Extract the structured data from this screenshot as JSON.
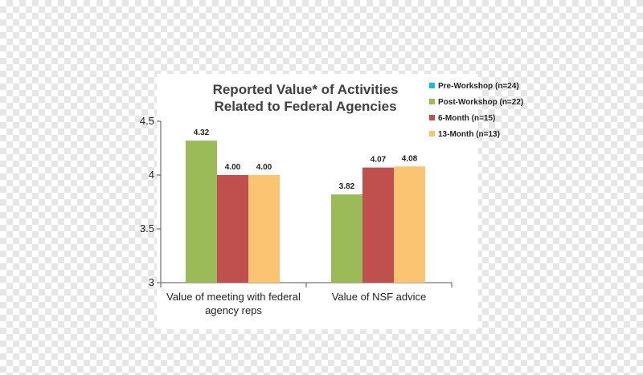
{
  "chart_data": {
    "type": "bar",
    "title": [
      "Reported Value* of Activities",
      "Related to Federal Agencies"
    ],
    "xlabel": "",
    "ylabel": "",
    "ylim": [
      3,
      4.5
    ],
    "yticks": [
      "3",
      "3.5",
      "4",
      "4.5"
    ],
    "ytick_values": [
      3,
      3.5,
      4,
      4.5
    ],
    "grid": false,
    "legend_position": "right",
    "categories": [
      [
        "Value of meeting with federal",
        "agency reps"
      ],
      [
        "Value of NSF advice"
      ]
    ],
    "series": [
      {
        "name": "Pre-Workshop (n=24)",
        "color": "#17becf",
        "values": [
          null,
          null
        ],
        "labels": [
          "",
          ""
        ]
      },
      {
        "name": "Post-Workshop (n=22)",
        "color": "#9bbb59",
        "values": [
          4.32,
          3.82
        ],
        "labels": [
          "4.32",
          "3.82"
        ]
      },
      {
        "name": "6-Month (n=15)",
        "color": "#c0504d",
        "values": [
          4.0,
          4.07
        ],
        "labels": [
          "4.00",
          "4.07"
        ]
      },
      {
        "name": "13-Month (n=13)",
        "color": "#fac472",
        "values": [
          4.0,
          4.08
        ],
        "labels": [
          "4.00",
          "4.08"
        ]
      }
    ]
  }
}
